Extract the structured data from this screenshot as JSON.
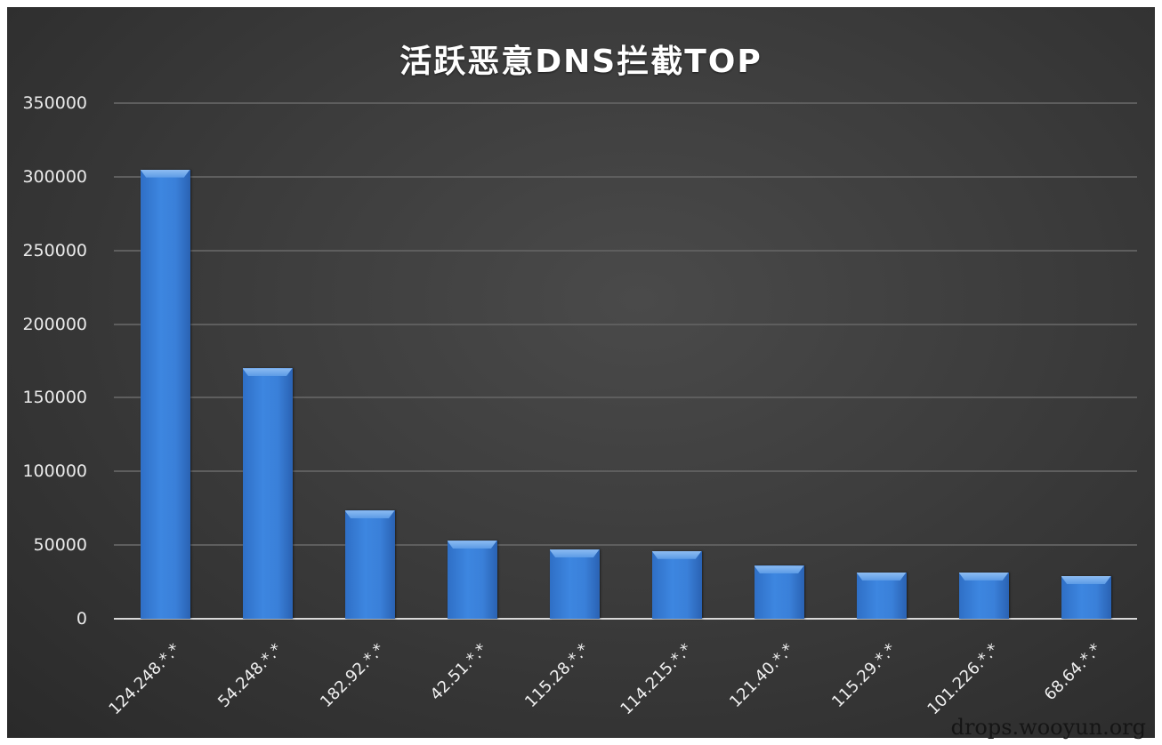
{
  "chart_data": {
    "type": "bar",
    "title": "活跃恶意DNS拦截TOP",
    "xlabel": "",
    "ylabel": "",
    "ylim": [
      0,
      350000
    ],
    "yticks": [
      "350000",
      "300000",
      "250000",
      "200000",
      "150000",
      "100000",
      "50000",
      "0"
    ],
    "grid": true,
    "legend": null,
    "categories": [
      "124.248.*.*",
      "54.248.*.*",
      "182.92.*.*",
      "42.51.*.*",
      "115.28.*.*",
      "114.215.*.*",
      "121.40.*.*",
      "115.29.*.*",
      "101.226.*.*",
      "68.64.*.*"
    ],
    "values": [
      305000,
      170000,
      73500,
      53000,
      47000,
      46000,
      36000,
      31500,
      31500,
      29000
    ],
    "bar_color": "#3a80d9"
  },
  "watermark": "drops.wooyun.org"
}
